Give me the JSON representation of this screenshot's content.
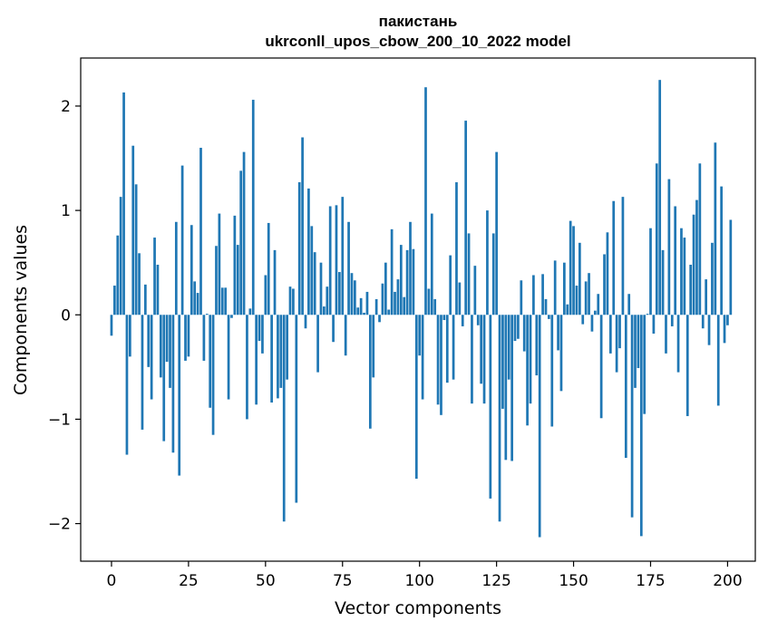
{
  "chart_data": {
    "type": "bar",
    "title": "пакистань",
    "subtitle": "ukrconll_upos_cbow_200_10_2022 model",
    "xlabel": "Vector components",
    "ylabel": "Components values",
    "xlim": [
      -10,
      209
    ],
    "ylim": [
      -2.36,
      2.46
    ],
    "xticks": [
      0,
      25,
      50,
      75,
      100,
      125,
      150,
      175,
      200
    ],
    "yticks": [
      -2,
      -1,
      0,
      1,
      2
    ],
    "ytick_labels": [
      "−2",
      "−1",
      "0",
      "1",
      "2"
    ],
    "grid": false,
    "bar_color": "#1f77b4",
    "values": [
      -0.2,
      0.28,
      0.76,
      1.13,
      2.13,
      -1.34,
      -0.4,
      1.62,
      1.25,
      0.59,
      -1.1,
      0.29,
      -0.5,
      -0.81,
      0.74,
      0.48,
      -0.6,
      -1.21,
      -0.45,
      -0.7,
      -1.32,
      0.89,
      -1.54,
      1.43,
      -0.44,
      -0.4,
      0.86,
      0.32,
      0.21,
      1.6,
      -0.44,
      0.01,
      -0.89,
      -1.15,
      0.66,
      0.97,
      0.26,
      0.26,
      -0.81,
      -0.03,
      0.95,
      0.67,
      1.38,
      1.56,
      -1.0,
      0.06,
      2.06,
      -0.86,
      -0.25,
      -0.37,
      0.38,
      0.88,
      -0.84,
      0.62,
      -0.8,
      -0.7,
      -1.98,
      -0.62,
      0.27,
      0.25,
      -1.8,
      1.27,
      1.7,
      -0.13,
      1.21,
      0.85,
      0.6,
      -0.55,
      0.5,
      0.08,
      0.27,
      1.04,
      -0.26,
      1.05,
      0.41,
      1.13,
      -0.39,
      0.89,
      0.4,
      0.33,
      0.07,
      0.16,
      0.02,
      0.22,
      -1.09,
      -0.6,
      0.15,
      -0.07,
      0.3,
      0.5,
      0.05,
      0.82,
      0.22,
      0.34,
      0.67,
      0.17,
      0.62,
      0.89,
      0.63,
      -1.57,
      -0.39,
      -0.81,
      2.18,
      0.25,
      0.97,
      0.15,
      -0.86,
      -0.96,
      -0.05,
      -0.65,
      0.57,
      -0.62,
      1.27,
      0.31,
      -0.11,
      1.86,
      0.78,
      -0.85,
      0.47,
      -0.1,
      -0.66,
      -0.85,
      1.0,
      -1.76,
      0.78,
      1.56,
      -1.98,
      -0.9,
      -1.39,
      -0.62,
      -1.4,
      -0.25,
      -0.23,
      0.33,
      -0.35,
      -1.06,
      -0.85,
      0.38,
      -0.58,
      -2.13,
      0.39,
      0.15,
      -0.04,
      -1.07,
      0.52,
      -0.34,
      -0.73,
      0.5,
      0.1,
      0.9,
      0.85,
      0.28,
      0.69,
      -0.09,
      0.32,
      0.4,
      -0.16,
      0.04,
      0.2,
      -0.99,
      0.58,
      0.79,
      -0.37,
      1.09,
      -0.55,
      -0.32,
      1.13,
      -1.37,
      0.2,
      -1.94,
      -0.7,
      -0.51,
      -2.12,
      -0.95,
      0.01,
      0.83,
      -0.18,
      1.45,
      2.25,
      0.62,
      -0.37,
      1.3,
      -0.11,
      1.04,
      -0.55,
      0.83,
      0.74,
      -0.97,
      0.48,
      0.96,
      1.1,
      1.45,
      -0.13,
      0.34,
      -0.29,
      0.69,
      1.65,
      -0.87,
      1.23,
      -0.27,
      -0.1,
      0.91
    ]
  }
}
